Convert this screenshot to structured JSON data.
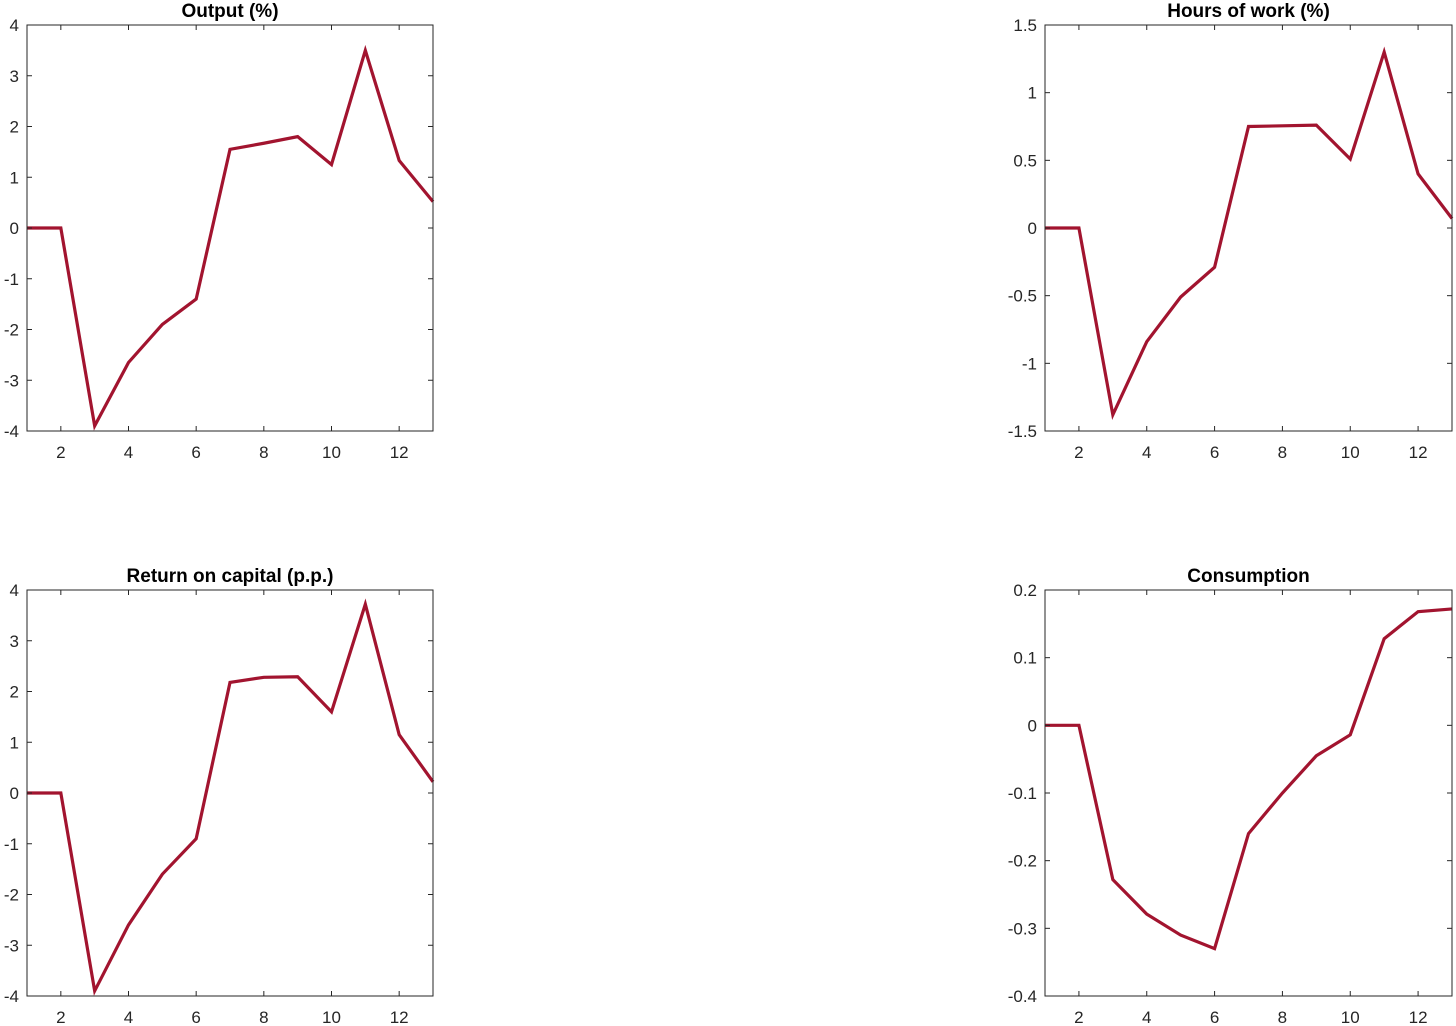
{
  "chart_data": [
    {
      "type": "line",
      "title": "Output (%)",
      "xlabel": "",
      "ylabel": "",
      "xlim": [
        1,
        13
      ],
      "ylim": [
        -4,
        4
      ],
      "xticks": [
        2,
        4,
        6,
        8,
        10,
        12
      ],
      "yticks": [
        -4,
        -3,
        -2,
        -1,
        0,
        1,
        2,
        3,
        4
      ],
      "ytick_labels": [
        "-4",
        "-3",
        "-2",
        "-1",
        "0",
        "1",
        "2",
        "3",
        "4"
      ],
      "grid": false,
      "line_color": "#A2142F",
      "series": [
        {
          "x": [
            1,
            2,
            3,
            4,
            5,
            6,
            7,
            8,
            9,
            10,
            11,
            12,
            13
          ],
          "values": [
            0,
            0,
            -3.9,
            -2.65,
            -1.9,
            -1.4,
            1.55,
            1.67,
            1.8,
            1.25,
            3.5,
            1.33,
            0.52
          ]
        }
      ]
    },
    {
      "type": "line",
      "title": "Hours of work (%)",
      "xlabel": "",
      "ylabel": "",
      "xlim": [
        1,
        13
      ],
      "ylim": [
        -1.5,
        1.5
      ],
      "xticks": [
        2,
        4,
        6,
        8,
        10,
        12
      ],
      "yticks": [
        -1.5,
        -1,
        -0.5,
        0,
        0.5,
        1,
        1.5
      ],
      "ytick_labels": [
        "-1.5",
        "-1",
        "-0.5",
        "0",
        "0.5",
        "1",
        "1.5"
      ],
      "grid": false,
      "line_color": "#A2142F",
      "series": [
        {
          "x": [
            1,
            2,
            3,
            4,
            5,
            6,
            7,
            8,
            9,
            10,
            11,
            12,
            13
          ],
          "values": [
            0,
            0,
            -1.38,
            -0.84,
            -0.51,
            -0.29,
            0.75,
            0.755,
            0.76,
            0.51,
            1.3,
            0.4,
            0.07
          ]
        }
      ]
    },
    {
      "type": "line",
      "title": "Return on capital (p.p.)",
      "xlabel": "",
      "ylabel": "",
      "xlim": [
        1,
        13
      ],
      "ylim": [
        -4,
        4
      ],
      "xticks": [
        2,
        4,
        6,
        8,
        10,
        12
      ],
      "yticks": [
        -4,
        -3,
        -2,
        -1,
        0,
        1,
        2,
        3,
        4
      ],
      "ytick_labels": [
        "-4",
        "-3",
        "-2",
        "-1",
        "0",
        "1",
        "2",
        "3",
        "4"
      ],
      "grid": false,
      "line_color": "#A2142F",
      "series": [
        {
          "x": [
            1,
            2,
            3,
            4,
            5,
            6,
            7,
            8,
            9,
            10,
            11,
            12,
            13
          ],
          "values": [
            0,
            0,
            -3.9,
            -2.6,
            -1.6,
            -0.9,
            2.18,
            2.28,
            2.29,
            1.6,
            3.72,
            1.15,
            0.22
          ]
        }
      ]
    },
    {
      "type": "line",
      "title": "Consumption",
      "xlabel": "",
      "ylabel": "",
      "xlim": [
        1,
        13
      ],
      "ylim": [
        -0.4,
        0.2
      ],
      "xticks": [
        2,
        4,
        6,
        8,
        10,
        12
      ],
      "yticks": [
        -0.4,
        -0.3,
        -0.2,
        -0.1,
        0,
        0.1,
        0.2
      ],
      "ytick_labels": [
        "-0.4",
        "-0.3",
        "-0.2",
        "-0.1",
        "0",
        "0.1",
        "0.2"
      ],
      "grid": false,
      "line_color": "#A2142F",
      "series": [
        {
          "x": [
            1,
            2,
            3,
            4,
            5,
            6,
            7,
            8,
            9,
            10,
            11,
            12,
            13
          ],
          "values": [
            0,
            0,
            -0.228,
            -0.279,
            -0.31,
            -0.33,
            -0.16,
            -0.1,
            -0.045,
            -0.014,
            0.128,
            0.168,
            0.172
          ]
        }
      ]
    }
  ]
}
